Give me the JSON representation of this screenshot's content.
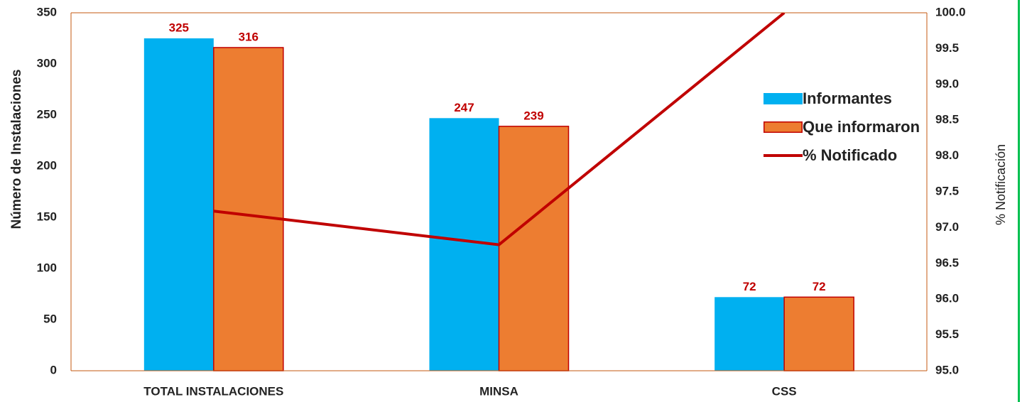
{
  "chart_data": {
    "type": "bar",
    "categories": [
      "TOTAL INSTALACIONES",
      "MINSA",
      "CSS"
    ],
    "series": [
      {
        "name": "Informantes",
        "color": "#00b0f0",
        "values": [
          325,
          247,
          72
        ]
      },
      {
        "name": "Que informaron",
        "color": "#ed7d31",
        "values": [
          316,
          239,
          72
        ]
      },
      {
        "name": "% Notificado",
        "color": "#c00000",
        "type": "line",
        "axis": "y2",
        "values": [
          97.23,
          96.76,
          100
        ]
      }
    ],
    "ylabel": "Número de Instalaciones",
    "y2label": "% Notificación",
    "ylim": [
      0,
      350
    ],
    "yticks": [
      0,
      50,
      100,
      150,
      200,
      250,
      300,
      350
    ],
    "y2lim": [
      95,
      100
    ],
    "y2ticks": [
      {
        "value": 95,
        "label": "95.0"
      },
      {
        "value": 95.5,
        "label": "95.5"
      },
      {
        "value": 96,
        "label": "96.0"
      },
      {
        "value": 96.5,
        "label": "96.5"
      },
      {
        "value": 97,
        "label": "97.0"
      },
      {
        "value": 97.5,
        "label": "97.5"
      },
      {
        "value": 98,
        "label": "98.0"
      },
      {
        "value": 98.5,
        "label": "98.5"
      },
      {
        "value": 99,
        "label": "99.0"
      },
      {
        "value": 99.5,
        "label": "99.5"
      },
      {
        "value": 100,
        "label": "100.0"
      }
    ]
  }
}
